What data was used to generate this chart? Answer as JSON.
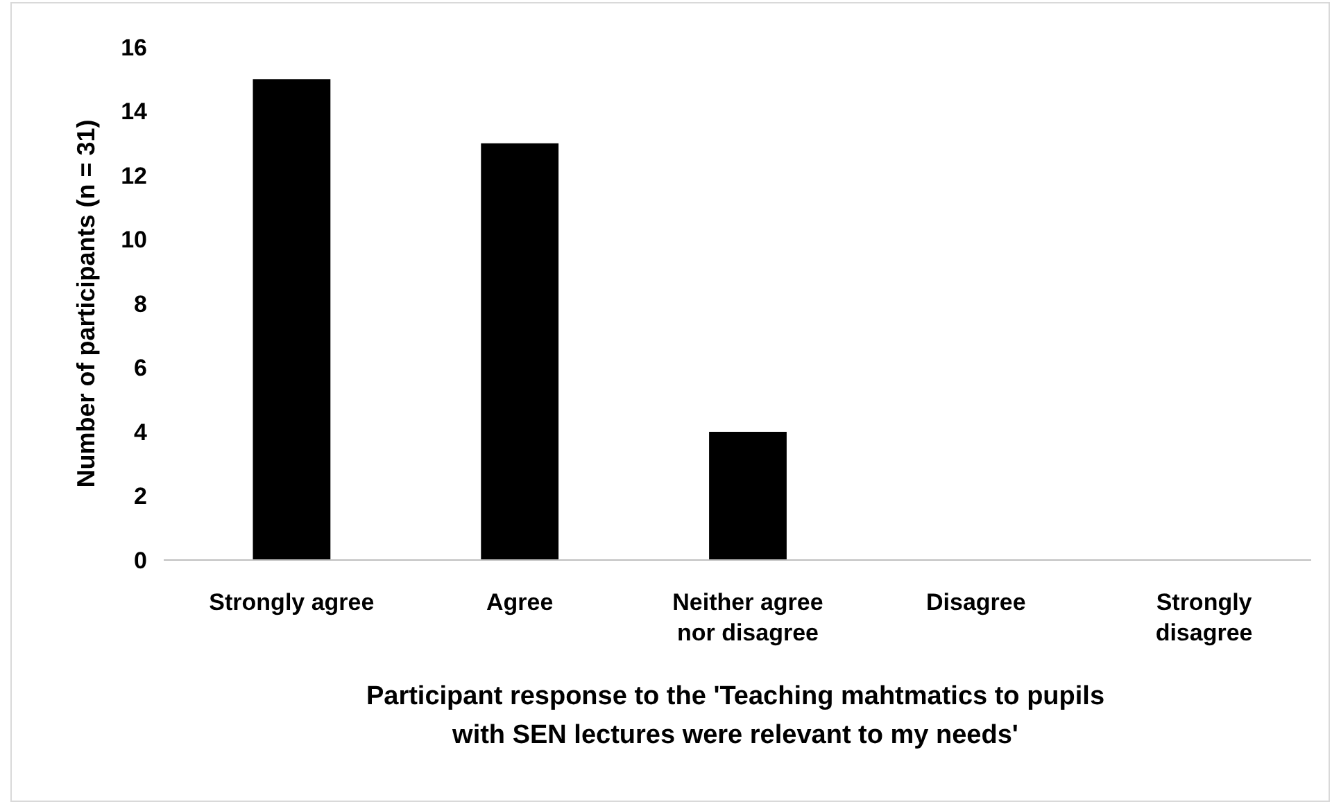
{
  "chart_data": {
    "type": "bar",
    "xlabel": "Participant response to the 'Teaching mahtmatics to pupils with SEN lectures were relevant to my needs'",
    "ylabel": "Number of participants (n = 31)",
    "categories": [
      "Strongly agree",
      "Agree",
      "Neither agree nor disagree",
      "Disagree",
      "Strongly disagree"
    ],
    "values": [
      15,
      13,
      4,
      0,
      0
    ],
    "color": "#000000",
    "ylim": [
      0,
      16
    ],
    "yticks": [
      0,
      2,
      4,
      6,
      8,
      10,
      12,
      14,
      16
    ],
    "grid": false
  }
}
